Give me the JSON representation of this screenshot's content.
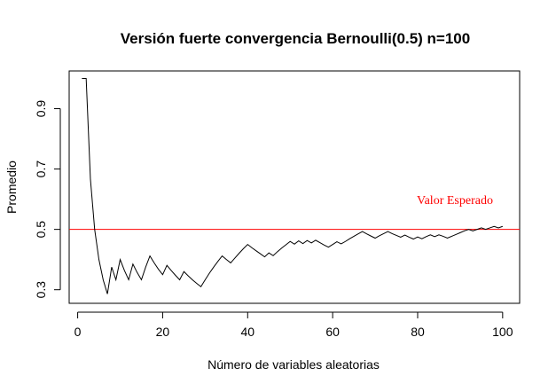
{
  "chart_data": {
    "type": "line",
    "title": "Versión fuerte convergencia Bernoulli(0.5) n=100",
    "xlabel": "Número de variables aleatorias",
    "ylabel": "Promedio",
    "xlim": [
      -2,
      104
    ],
    "ylim": [
      0.255,
      1.025
    ],
    "x_ticks": [
      0,
      20,
      40,
      60,
      80,
      100
    ],
    "y_ticks": [
      0.3,
      0.5,
      0.7,
      0.9
    ],
    "x_tick_labels": [
      "0",
      "20",
      "40",
      "60",
      "80",
      "100"
    ],
    "y_tick_labels": [
      "0.3",
      "0.5",
      "0.7",
      "0.9"
    ],
    "grid": false,
    "box": true,
    "series": [
      {
        "x": [
          1,
          2,
          3,
          4,
          5,
          6,
          7,
          8,
          9,
          10,
          11,
          12,
          13,
          14,
          15,
          16,
          17,
          18,
          19,
          20,
          21,
          22,
          23,
          24,
          25,
          26,
          27,
          28,
          29,
          30,
          31,
          32,
          33,
          34,
          35,
          36,
          37,
          38,
          39,
          40,
          41,
          42,
          43,
          44,
          45,
          46,
          47,
          48,
          49,
          50,
          51,
          52,
          53,
          54,
          55,
          56,
          57,
          58,
          59,
          60,
          61,
          62,
          63,
          64,
          65,
          66,
          67,
          68,
          69,
          70,
          71,
          72,
          73,
          74,
          75,
          76,
          77,
          78,
          79,
          80,
          81,
          82,
          83,
          84,
          85,
          86,
          87,
          88,
          89,
          90,
          91,
          92,
          93,
          94,
          95,
          96,
          97,
          98,
          99,
          100
        ],
        "y": [
          1.0,
          1.0,
          0.667,
          0.5,
          0.4,
          0.333,
          0.286,
          0.375,
          0.333,
          0.4,
          0.364,
          0.333,
          0.385,
          0.357,
          0.333,
          0.375,
          0.412,
          0.389,
          0.368,
          0.35,
          0.381,
          0.364,
          0.348,
          0.333,
          0.36,
          0.346,
          0.333,
          0.321,
          0.31,
          0.333,
          0.355,
          0.375,
          0.394,
          0.412,
          0.4,
          0.389,
          0.405,
          0.421,
          0.436,
          0.45,
          0.439,
          0.429,
          0.419,
          0.409,
          0.422,
          0.413,
          0.426,
          0.438,
          0.449,
          0.46,
          0.451,
          0.462,
          0.453,
          0.463,
          0.455,
          0.464,
          0.456,
          0.448,
          0.441,
          0.45,
          0.459,
          0.452,
          0.46,
          0.469,
          0.477,
          0.485,
          0.493,
          0.485,
          0.478,
          0.471,
          0.479,
          0.486,
          0.493,
          0.486,
          0.48,
          0.474,
          0.481,
          0.474,
          0.468,
          0.475,
          0.469,
          0.476,
          0.482,
          0.476,
          0.482,
          0.477,
          0.471,
          0.477,
          0.483,
          0.489,
          0.495,
          0.5,
          0.495,
          0.5,
          0.505,
          0.5,
          0.505,
          0.51,
          0.505,
          0.51
        ],
        "color": "#000000"
      }
    ],
    "reference_line": {
      "y": 0.5,
      "color": "#ff0000",
      "label": "Valor Esperado"
    }
  }
}
